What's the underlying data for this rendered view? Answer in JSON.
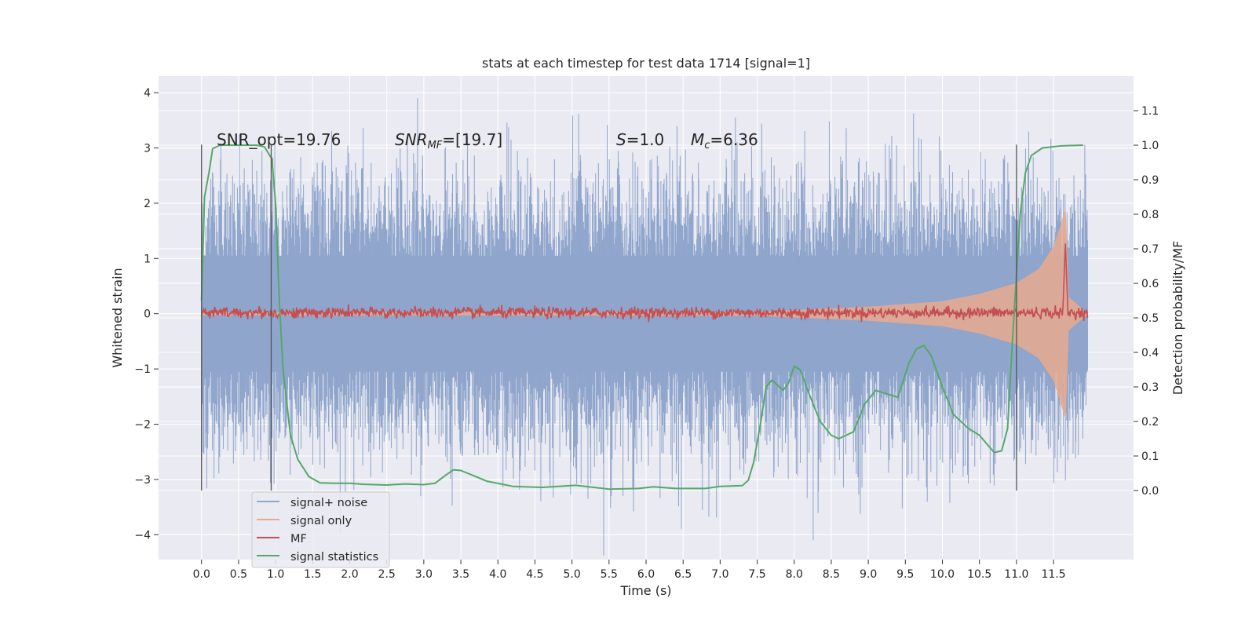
{
  "chart_data": {
    "type": "line",
    "title": "stats at each timestep for test data 1714 [signal=1]",
    "xlabel": "Time (s)",
    "ylabel_left": "Whitened strain",
    "ylabel_right": "Detection probability/MF",
    "xlim": [
      -0.58,
      12.58
    ],
    "ylim_left": [
      -4.45,
      4.3
    ],
    "ylim_right": [
      -0.2,
      1.2
    ],
    "x_ticks": [
      0.0,
      0.5,
      1.0,
      1.5,
      2.0,
      2.5,
      3.0,
      3.5,
      4.0,
      4.5,
      5.0,
      5.5,
      6.0,
      6.5,
      7.0,
      7.5,
      8.0,
      8.5,
      9.0,
      9.5,
      10.0,
      10.5,
      11.0,
      11.5
    ],
    "x_tick_labels": [
      "0.0",
      "0.5",
      "1.0",
      "1.5",
      "2.0",
      "2.5",
      "3.0",
      "3.5",
      "4.0",
      "4.5",
      "5.0",
      "5.5",
      "6.0",
      "6.5",
      "7.0",
      "7.5",
      "8.0",
      "8.5",
      "9.0",
      "9.5",
      "10.0",
      "10.5",
      "11.0",
      "11.5"
    ],
    "y_left_ticks": [
      -4,
      -3,
      -2,
      -1,
      0,
      1,
      2,
      3,
      4
    ],
    "y_left_tick_labels": [
      "−4",
      "−3",
      "−2",
      "−1",
      "0",
      "1",
      "2",
      "3",
      "4"
    ],
    "y_right_ticks": [
      0.0,
      0.1,
      0.2,
      0.3,
      0.4,
      0.5,
      0.6,
      0.7,
      0.8,
      0.9,
      1.0,
      1.1
    ],
    "y_right_tick_labels": [
      "0.0",
      "0.1",
      "0.2",
      "0.3",
      "0.4",
      "0.5",
      "0.6",
      "0.7",
      "0.8",
      "0.9",
      "1.0",
      "1.1"
    ],
    "grid": true,
    "legend_position": "bottom-left",
    "annotations": {
      "snr_opt": "SNR_opt=19.76",
      "snr_mf_a": "SNR",
      "snr_mf_sub": "MF",
      "snr_mf_b": "=[19.7]",
      "s_a": "S",
      "s_b": "=1.0",
      "mc_a": "M",
      "mc_sub": "c",
      "mc_b": "=6.36"
    },
    "vlines": [
      0.0,
      0.94,
      11.0
    ],
    "series": [
      {
        "name": "signal+ noise",
        "axis": "left",
        "color": "#8fa5cc",
        "style": "noise",
        "t_range": [
          0.0,
          11.96
        ],
        "typical_amplitude": 1.7,
        "peak_amplitude": 3.9
      },
      {
        "name": "signal only",
        "axis": "left",
        "color": "#e8a98e",
        "style": "chirp",
        "t_range": [
          0.0,
          11.96
        ],
        "envelope": [
          [
            0.0,
            0.02
          ],
          [
            7.5,
            0.03
          ],
          [
            9.0,
            0.12
          ],
          [
            10.0,
            0.22
          ],
          [
            10.5,
            0.35
          ],
          [
            11.0,
            0.55
          ],
          [
            11.3,
            0.8
          ],
          [
            11.5,
            1.2
          ],
          [
            11.6,
            1.6
          ],
          [
            11.66,
            1.9
          ],
          [
            11.7,
            0.3
          ],
          [
            11.96,
            0.0
          ]
        ]
      },
      {
        "name": "MF",
        "axis": "right",
        "color": "#c44e52",
        "style": "noisy-line",
        "t_range": [
          0.0,
          11.96
        ],
        "baseline": 0.515,
        "noise": 0.008,
        "spike": [
          11.66,
          0.72
        ]
      },
      {
        "name": "signal statistics",
        "axis": "right",
        "color": "#55a868",
        "style": "line",
        "points": [
          [
            0.0,
            0.55
          ],
          [
            0.04,
            0.85
          ],
          [
            0.1,
            0.92
          ],
          [
            0.15,
            0.99
          ],
          [
            0.25,
            1.0
          ],
          [
            0.5,
            1.0
          ],
          [
            0.75,
            1.0
          ],
          [
            0.85,
            0.995
          ],
          [
            0.95,
            0.96
          ],
          [
            1.0,
            0.83
          ],
          [
            1.05,
            0.55
          ],
          [
            1.1,
            0.35
          ],
          [
            1.2,
            0.16
          ],
          [
            1.3,
            0.09
          ],
          [
            1.45,
            0.04
          ],
          [
            1.6,
            0.022
          ],
          [
            1.8,
            0.021
          ],
          [
            2.0,
            0.021
          ],
          [
            2.2,
            0.018
          ],
          [
            2.5,
            0.016
          ],
          [
            2.75,
            0.019
          ],
          [
            3.0,
            0.017
          ],
          [
            3.15,
            0.021
          ],
          [
            3.3,
            0.045
          ],
          [
            3.4,
            0.06
          ],
          [
            3.5,
            0.058
          ],
          [
            3.65,
            0.045
          ],
          [
            3.85,
            0.027
          ],
          [
            4.2,
            0.012
          ],
          [
            4.6,
            0.009
          ],
          [
            5.05,
            0.015
          ],
          [
            5.5,
            0.004
          ],
          [
            5.9,
            0.006
          ],
          [
            6.1,
            0.011
          ],
          [
            6.4,
            0.006
          ],
          [
            6.8,
            0.006
          ],
          [
            7.0,
            0.012
          ],
          [
            7.3,
            0.014
          ],
          [
            7.38,
            0.03
          ],
          [
            7.45,
            0.08
          ],
          [
            7.55,
            0.2
          ],
          [
            7.62,
            0.3
          ],
          [
            7.7,
            0.32
          ],
          [
            7.8,
            0.3
          ],
          [
            7.85,
            0.29
          ],
          [
            7.92,
            0.31
          ],
          [
            8.0,
            0.36
          ],
          [
            8.08,
            0.35
          ],
          [
            8.2,
            0.28
          ],
          [
            8.35,
            0.2
          ],
          [
            8.5,
            0.16
          ],
          [
            8.6,
            0.15
          ],
          [
            8.8,
            0.17
          ],
          [
            8.95,
            0.25
          ],
          [
            9.1,
            0.29
          ],
          [
            9.25,
            0.28
          ],
          [
            9.4,
            0.27
          ],
          [
            9.55,
            0.37
          ],
          [
            9.65,
            0.41
          ],
          [
            9.75,
            0.42
          ],
          [
            9.85,
            0.39
          ],
          [
            10.0,
            0.3
          ],
          [
            10.15,
            0.22
          ],
          [
            10.35,
            0.18
          ],
          [
            10.5,
            0.16
          ],
          [
            10.7,
            0.11
          ],
          [
            10.8,
            0.115
          ],
          [
            10.88,
            0.18
          ],
          [
            10.95,
            0.45
          ],
          [
            11.05,
            0.8
          ],
          [
            11.12,
            0.92
          ],
          [
            11.2,
            0.97
          ],
          [
            11.35,
            0.992
          ],
          [
            11.6,
            0.998
          ],
          [
            11.9,
            1.0
          ]
        ]
      }
    ]
  }
}
